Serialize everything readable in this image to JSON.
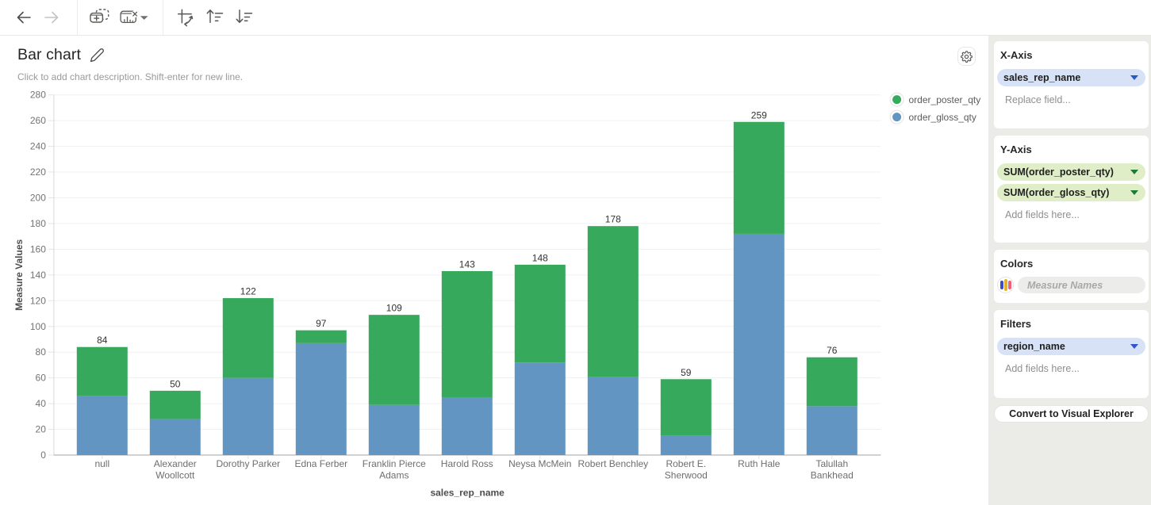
{
  "toolbar": {
    "icons": [
      {
        "name": "back",
        "enabled": true
      },
      {
        "name": "forward",
        "enabled": false
      },
      {
        "name": "duplicate-chart",
        "enabled": true
      },
      {
        "name": "remove-chart",
        "enabled": true
      },
      {
        "name": "swap-axes",
        "enabled": true
      },
      {
        "name": "sort-ascending",
        "enabled": true
      },
      {
        "name": "sort-descending",
        "enabled": true
      }
    ]
  },
  "header": {
    "title": "Bar chart",
    "description_placeholder": "Click to add chart description. Shift-enter for new line."
  },
  "chart_data": {
    "type": "bar",
    "stacked": true,
    "xlabel": "sales_rep_name",
    "ylabel": "Measure Values",
    "ylim": [
      0,
      280
    ],
    "ytick_step": 20,
    "grid": true,
    "legend_position": "top-right",
    "categories": [
      "null",
      "Alexander Woollcott",
      "Dorothy Parker",
      "Edna Ferber",
      "Franklin Pierce Adams",
      "Harold Ross",
      "Neysa McMein",
      "Robert Benchley",
      "Robert E. Sherwood",
      "Ruth Hale",
      "Talullah Bankhead"
    ],
    "category_label_lines": [
      [
        "null"
      ],
      [
        "Alexander",
        "Woollcott"
      ],
      [
        "Dorothy Parker"
      ],
      [
        "Edna Ferber"
      ],
      [
        "Franklin Pierce",
        "Adams"
      ],
      [
        "Harold Ross"
      ],
      [
        "Neysa McMein"
      ],
      [
        "Robert Benchley"
      ],
      [
        "Robert E.",
        "Sherwood"
      ],
      [
        "Ruth Hale"
      ],
      [
        "Talullah",
        "Bankhead"
      ]
    ],
    "series": [
      {
        "name": "order_gloss_qty",
        "color": "#6295c1",
        "values": [
          46,
          28,
          60,
          87,
          39,
          45,
          72,
          61,
          15,
          172,
          38
        ]
      },
      {
        "name": "order_poster_qty",
        "color": "#36a95c",
        "values": [
          38,
          22,
          62,
          10,
          70,
          98,
          76,
          117,
          44,
          87,
          38
        ]
      }
    ],
    "totals": [
      84,
      50,
      122,
      97,
      109,
      143,
      148,
      178,
      59,
      259,
      76
    ],
    "legend_order": [
      "order_poster_qty",
      "order_gloss_qty"
    ]
  },
  "sidebar": {
    "sections": [
      {
        "title": "X-Axis",
        "pills": [
          {
            "label": "sales_rep_name",
            "type": "dimension"
          }
        ],
        "placeholder": "Replace field..."
      },
      {
        "title": "Y-Axis",
        "pills": [
          {
            "label": "SUM(order_poster_qty)",
            "type": "measure"
          },
          {
            "label": "SUM(order_gloss_qty)",
            "type": "measure"
          }
        ],
        "placeholder": "Add fields here..."
      },
      {
        "title": "Colors",
        "input_placeholder": "Measure Names"
      },
      {
        "title": "Filters",
        "pills": [
          {
            "label": "region_name",
            "type": "dimension"
          }
        ],
        "placeholder": "Add fields here..."
      }
    ],
    "convert_button_label": "Convert to Visual Explorer"
  },
  "colors": {
    "accent_blue": "#2f55c8",
    "accent_green": "#1f7a37",
    "pill_blue_bg": "#d8e2f7",
    "pill_green_bg": "#dfeec6",
    "swatch_blue": "#3b51c3",
    "swatch_yellow": "#e3b32a",
    "swatch_red": "#ee6177",
    "bar_green": "#36a95c",
    "bar_blue": "#6295c1"
  }
}
